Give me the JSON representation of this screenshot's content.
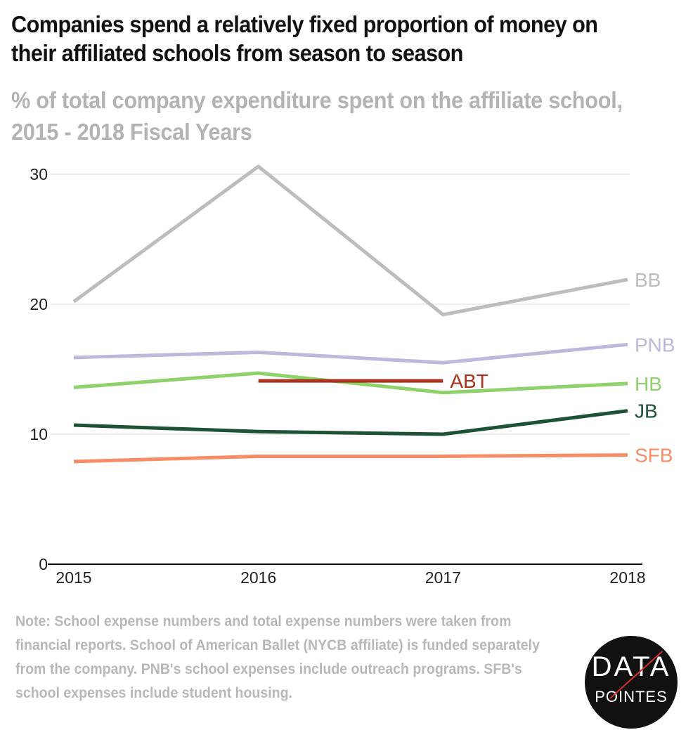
{
  "title": "Companies spend a relatively fixed proportion of money on their affiliated schools from season to season",
  "subtitle": "% of total company expenditure spent on the affiliate school, 2015 - 2018 Fiscal Years",
  "note": "Note: School expense numbers and total expense numbers were taken from financial reports. School of American Ballet (NYCB affiliate) is funded separately from the company. PNB's school expenses include outreach programs. SFB's school expenses include student housing.",
  "logo": {
    "line1": "DATA",
    "line2": "POINTES"
  },
  "chart_data": {
    "type": "line",
    "title": "",
    "xlabel": "",
    "ylabel": "",
    "x": [
      2015,
      2016,
      2017,
      2018
    ],
    "x_tick_labels": [
      "2015",
      "2016",
      "2017",
      "2018"
    ],
    "y_ticks": [
      0,
      10,
      20,
      30
    ],
    "y_tick_labels": [
      "0",
      "10",
      "20",
      "30"
    ],
    "ylim": [
      0,
      30.6
    ],
    "grid": "horizontal",
    "legend": "direct labels at right end of each line",
    "series": [
      {
        "name": "BB",
        "color": "#bdbdbd",
        "values": [
          20.2,
          30.6,
          19.2,
          21.9
        ]
      },
      {
        "name": "PNB",
        "color": "#bfb8dc",
        "values": [
          15.9,
          16.3,
          15.5,
          16.9
        ]
      },
      {
        "name": "HB",
        "color": "#8fd16a",
        "values": [
          13.6,
          14.7,
          13.2,
          13.9
        ]
      },
      {
        "name": "ABT",
        "color": "#a8321b",
        "values": [
          null,
          14.1,
          14.1,
          null
        ]
      },
      {
        "name": "JB",
        "color": "#1d5236",
        "values": [
          10.7,
          10.2,
          10.0,
          11.8
        ]
      },
      {
        "name": "SFB",
        "color": "#f78d66",
        "values": [
          7.9,
          8.3,
          8.3,
          8.4
        ]
      }
    ]
  }
}
